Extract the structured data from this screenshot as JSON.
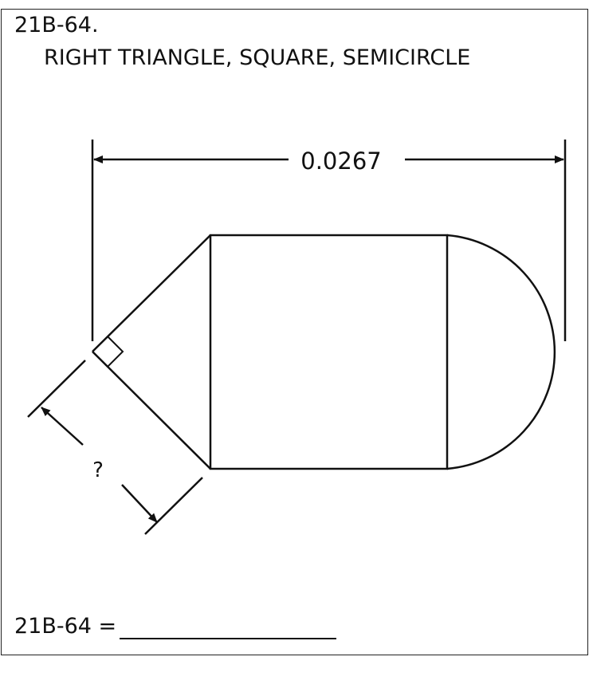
{
  "problem": {
    "number": "21B-64.",
    "title": "RIGHT TRIANGLE, SQUARE, SEMICIRCLE"
  },
  "figure": {
    "shapes": [
      "right triangle",
      "square",
      "semicircle"
    ],
    "overall_length_label": "0.0267",
    "unknown_label": "?"
  },
  "answer": {
    "label": "21B-64 ="
  },
  "colors": {
    "ink": "#111111",
    "background": "#ffffff"
  }
}
